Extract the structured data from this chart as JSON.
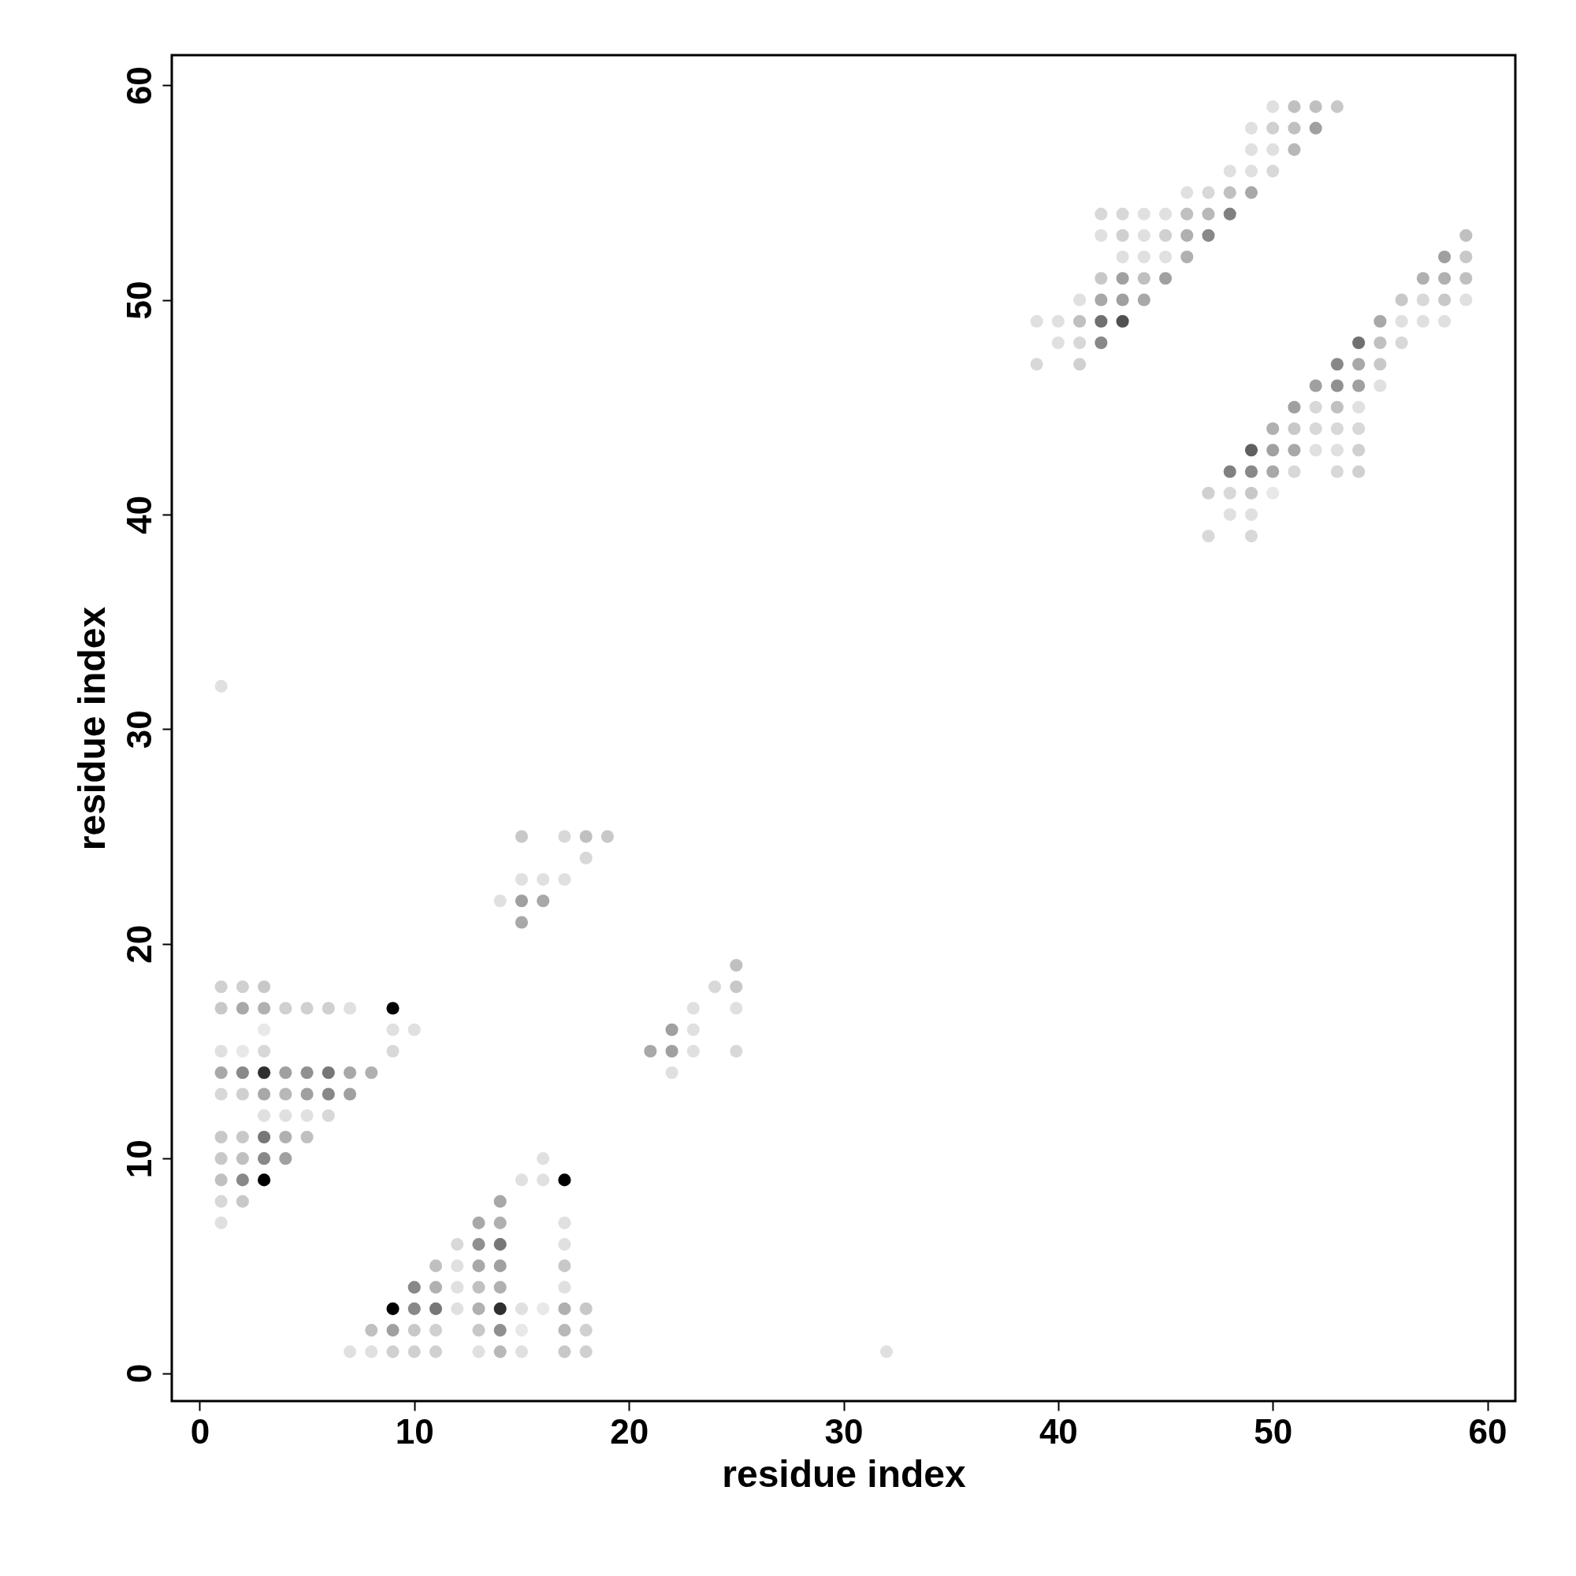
{
  "chart_data": {
    "type": "scatter",
    "xlabel": "residue index",
    "ylabel": "residue index",
    "xlim": [
      -1.3,
      61.3
    ],
    "ylim": [
      -1.3,
      61.4
    ],
    "xticks": [
      0,
      10,
      20,
      30,
      40,
      50,
      60
    ],
    "yticks": [
      0,
      10,
      20,
      30,
      40,
      50,
      60
    ],
    "grid": false,
    "marker": "circle",
    "x": [
      50,
      51,
      52,
      53,
      49,
      50,
      51,
      52,
      49,
      50,
      51,
      48,
      49,
      50,
      46,
      47,
      48,
      49,
      42,
      43,
      44,
      45,
      46,
      47,
      48,
      42,
      43,
      44,
      45,
      46,
      47,
      59,
      43,
      44,
      45,
      46,
      58,
      59,
      42,
      43,
      44,
      45,
      57,
      58,
      59,
      41,
      42,
      43,
      44,
      56,
      57,
      58,
      59,
      39,
      40,
      41,
      42,
      43,
      55,
      56,
      57,
      58,
      40,
      41,
      42,
      54,
      55,
      56,
      39,
      41,
      53,
      54,
      55,
      52,
      53,
      54,
      55,
      51,
      52,
      53,
      54,
      50,
      51,
      52,
      53,
      54,
      49,
      50,
      51,
      52,
      53,
      54,
      48,
      49,
      50,
      51,
      53,
      54,
      47,
      48,
      49,
      50,
      48,
      49,
      47,
      49,
      1,
      15,
      17,
      18,
      19,
      18,
      15,
      16,
      17,
      14,
      15,
      16,
      15,
      25,
      1,
      2,
      3,
      24,
      25,
      1,
      2,
      3,
      4,
      5,
      6,
      7,
      9,
      23,
      25,
      3,
      9,
      10,
      22,
      23,
      1,
      2,
      3,
      9,
      21,
      22,
      23,
      25,
      1,
      2,
      3,
      4,
      5,
      6,
      7,
      8,
      22,
      1,
      2,
      3,
      4,
      5,
      6,
      7,
      3,
      4,
      5,
      6,
      1,
      2,
      3,
      4,
      5,
      1,
      2,
      3,
      4,
      16,
      1,
      2,
      3,
      15,
      16,
      17,
      1,
      2,
      14,
      1,
      13,
      14,
      17,
      12,
      13,
      14,
      17,
      11,
      12,
      13,
      14,
      17,
      10,
      11,
      12,
      13,
      14,
      17,
      9,
      10,
      11,
      12,
      13,
      14,
      15,
      16,
      17,
      18,
      8,
      9,
      10,
      11,
      13,
      14,
      15,
      17,
      18,
      7,
      8,
      9,
      10,
      11,
      13,
      14,
      15,
      17,
      18,
      32
    ],
    "values": [
      59,
      59,
      59,
      59,
      58,
      58,
      58,
      58,
      57,
      57,
      57,
      56,
      56,
      56,
      55,
      55,
      55,
      55,
      54,
      54,
      54,
      54,
      54,
      54,
      54,
      53,
      53,
      53,
      53,
      53,
      53,
      53,
      52,
      52,
      52,
      52,
      52,
      52,
      51,
      51,
      51,
      51,
      51,
      51,
      51,
      50,
      50,
      50,
      50,
      50,
      50,
      50,
      50,
      49,
      49,
      49,
      49,
      49,
      49,
      49,
      49,
      49,
      48,
      48,
      48,
      48,
      48,
      48,
      47,
      47,
      47,
      47,
      47,
      46,
      46,
      46,
      46,
      45,
      45,
      45,
      45,
      44,
      44,
      44,
      44,
      44,
      43,
      43,
      43,
      43,
      43,
      43,
      42,
      42,
      42,
      42,
      42,
      42,
      41,
      41,
      41,
      41,
      40,
      40,
      39,
      39,
      32,
      25,
      25,
      25,
      25,
      24,
      23,
      23,
      23,
      22,
      22,
      22,
      21,
      19,
      18,
      18,
      18,
      18,
      18,
      17,
      17,
      17,
      17,
      17,
      17,
      17,
      17,
      17,
      17,
      16,
      16,
      16,
      16,
      16,
      15,
      15,
      15,
      15,
      15,
      15,
      15,
      15,
      14,
      14,
      14,
      14,
      14,
      14,
      14,
      14,
      14,
      13,
      13,
      13,
      13,
      13,
      13,
      13,
      12,
      12,
      12,
      12,
      11,
      11,
      11,
      11,
      11,
      10,
      10,
      10,
      10,
      10,
      9,
      9,
      9,
      9,
      9,
      9,
      8,
      8,
      8,
      7,
      7,
      7,
      7,
      6,
      6,
      6,
      6,
      5,
      5,
      5,
      5,
      5,
      4,
      4,
      4,
      4,
      4,
      4,
      3,
      3,
      3,
      3,
      3,
      3,
      3,
      3,
      3,
      3,
      2,
      2,
      2,
      2,
      2,
      2,
      2,
      2,
      2,
      1,
      1,
      1,
      1,
      1,
      1,
      1,
      1,
      1,
      1,
      1
    ],
    "colors": [
      "#e0e0e0",
      "#c0c0c0",
      "#c0c0c0",
      "#c8c8c8",
      "#e0e0e0",
      "#d0d0d0",
      "#c0c0c0",
      "#a0a0a0",
      "#e0e0e0",
      "#e0e0e0",
      "#b8b8b8",
      "#e0e0e0",
      "#e0e0e0",
      "#d8d8d8",
      "#e0e0e0",
      "#d8d8d8",
      "#c0c0c0",
      "#a8a8a8",
      "#d8d8d8",
      "#d8d8d8",
      "#e0e0e0",
      "#e0e0e0",
      "#c0c0c0",
      "#b8b8b8",
      "#808080",
      "#e0e0e0",
      "#d0d0d0",
      "#e0e0e0",
      "#d0d0d0",
      "#b0b0b0",
      "#888888",
      "#c0c0c0",
      "#e0e0e0",
      "#e0e0e0",
      "#e0e0e0",
      "#b0b0b0",
      "#a0a0a0",
      "#c8c8c8",
      "#c8c8c8",
      "#a0a0a0",
      "#c0c0c0",
      "#a0a0a0",
      "#b0b0b0",
      "#b0b0b0",
      "#c0c0c0",
      "#e0e0e0",
      "#a8a8a8",
      "#a0a0a0",
      "#a8a8a8",
      "#c8c8c8",
      "#d8d8d8",
      "#c8c8c8",
      "#e0e0e0",
      "#e0e0e0",
      "#e0e0e0",
      "#c0c0c0",
      "#707070",
      "#505050",
      "#a8a8a8",
      "#e0e0e0",
      "#e0e0e0",
      "#e0e0e0",
      "#e0e0e0",
      "#d8d8d8",
      "#888888",
      "#707070",
      "#c0c0c0",
      "#d8d8d8",
      "#d8d8d8",
      "#d0d0d0",
      "#888888",
      "#a8a8a8",
      "#c8c8c8",
      "#a0a0a0",
      "#909090",
      "#a0a0a0",
      "#e0e0e0",
      "#a0a0a0",
      "#d8d8d8",
      "#c0c0c0",
      "#e0e0e0",
      "#b0b0b0",
      "#c8c8c8",
      "#d8d8d8",
      "#d8d8d8",
      "#d8d8d8",
      "#606060",
      "#a0a0a0",
      "#a8a8a8",
      "#e0e0e0",
      "#e0e0e0",
      "#d0d0d0",
      "#808080",
      "#888888",
      "#a8a8a8",
      "#d8d8d8",
      "#d8d8d8",
      "#d0d0d0",
      "#d0d0d0",
      "#d8d8d8",
      "#c8c8c8",
      "#e8e8e8",
      "#e0e0e0",
      "#e0e0e0",
      "#d8d8d8",
      "#d8d8d8",
      "#e0e0e0",
      "#c8c8c8",
      "#d8d8d8",
      "#c0c0c0",
      "#c8c8c8",
      "#d8d8d8",
      "#e0e0e0",
      "#e0e0e0",
      "#e0e0e0",
      "#e0e0e0",
      "#a0a0a0",
      "#a8a8a8",
      "#a8a8a8",
      "#c0c0c0",
      "#d0d0d0",
      "#d0d0d0",
      "#c8c8c8",
      "#d8d8d8",
      "#c8c8c8",
      "#c8c8c8",
      "#a8a8a8",
      "#b0b0b0",
      "#d0d0d0",
      "#d0d0d0",
      "#d0d0d0",
      "#e0e0e0",
      "#000000",
      "#e0e0e0",
      "#e0e0e0",
      "#e8e8e8",
      "#e0e0e0",
      "#e0e0e0",
      "#a0a0a0",
      "#e0e0e0",
      "#e0e0e0",
      "#e8e8e8",
      "#d8d8d8",
      "#d8d8d8",
      "#a8a8a8",
      "#a0a0a0",
      "#e0e0e0",
      "#d8d8d8",
      "#a8a8a8",
      "#888888",
      "#303030",
      "#a0a0a0",
      "#909090",
      "#777777",
      "#a8a8a8",
      "#b0b0b0",
      "#e0e0e0",
      "#d8d8d8",
      "#d0d0d0",
      "#a8a8a8",
      "#b8b8b8",
      "#a0a0a0",
      "#888888",
      "#a0a0a0",
      "#e0e0e0",
      "#e0e0e0",
      "#e0e0e0",
      "#d8d8d8",
      "#c8c8c8",
      "#c8c8c8",
      "#777777",
      "#b0b0b0",
      "#c0c0c0",
      "#c8c8c8",
      "#c0c0c0",
      "#888888",
      "#a0a0a0",
      "#e0e0e0",
      "#c0c0c0",
      "#888888",
      "#000000",
      "#e0e0e0",
      "#e0e0e0",
      "#000000",
      "#d8d8d8",
      "#c8c8c8",
      "#a8a8a8",
      "#e0e0e0",
      "#a8a8a8",
      "#b0b0b0",
      "#e0e0e0",
      "#d8d8d8",
      "#909090",
      "#777777",
      "#e0e0e0",
      "#c0c0c0",
      "#e0e0e0",
      "#a8a8a8",
      "#a0a0a0",
      "#c8c8c8",
      "#888888",
      "#b0b0b0",
      "#e0e0e0",
      "#c0c0c0",
      "#b0b0b0",
      "#e0e0e0",
      "#000000",
      "#888888",
      "#777777",
      "#e0e0e0",
      "#b0b0b0",
      "#303030",
      "#e0e0e0",
      "#e8e8e8",
      "#b0b0b0",
      "#c8c8c8",
      "#c0c0c0",
      "#a0a0a0",
      "#c8c8c8",
      "#d0d0d0",
      "#c8c8c8",
      "#909090",
      "#e8e8e8",
      "#b8b8b8",
      "#d0d0d0",
      "#e0e0e0",
      "#e0e0e0",
      "#d0d0d0",
      "#d0d0d0",
      "#d0d0d0",
      "#e0e0e0",
      "#b8b8b8",
      "#e0e0e0",
      "#c8c8c8",
      "#d0d0d0",
      "#e0e0e0"
    ]
  }
}
